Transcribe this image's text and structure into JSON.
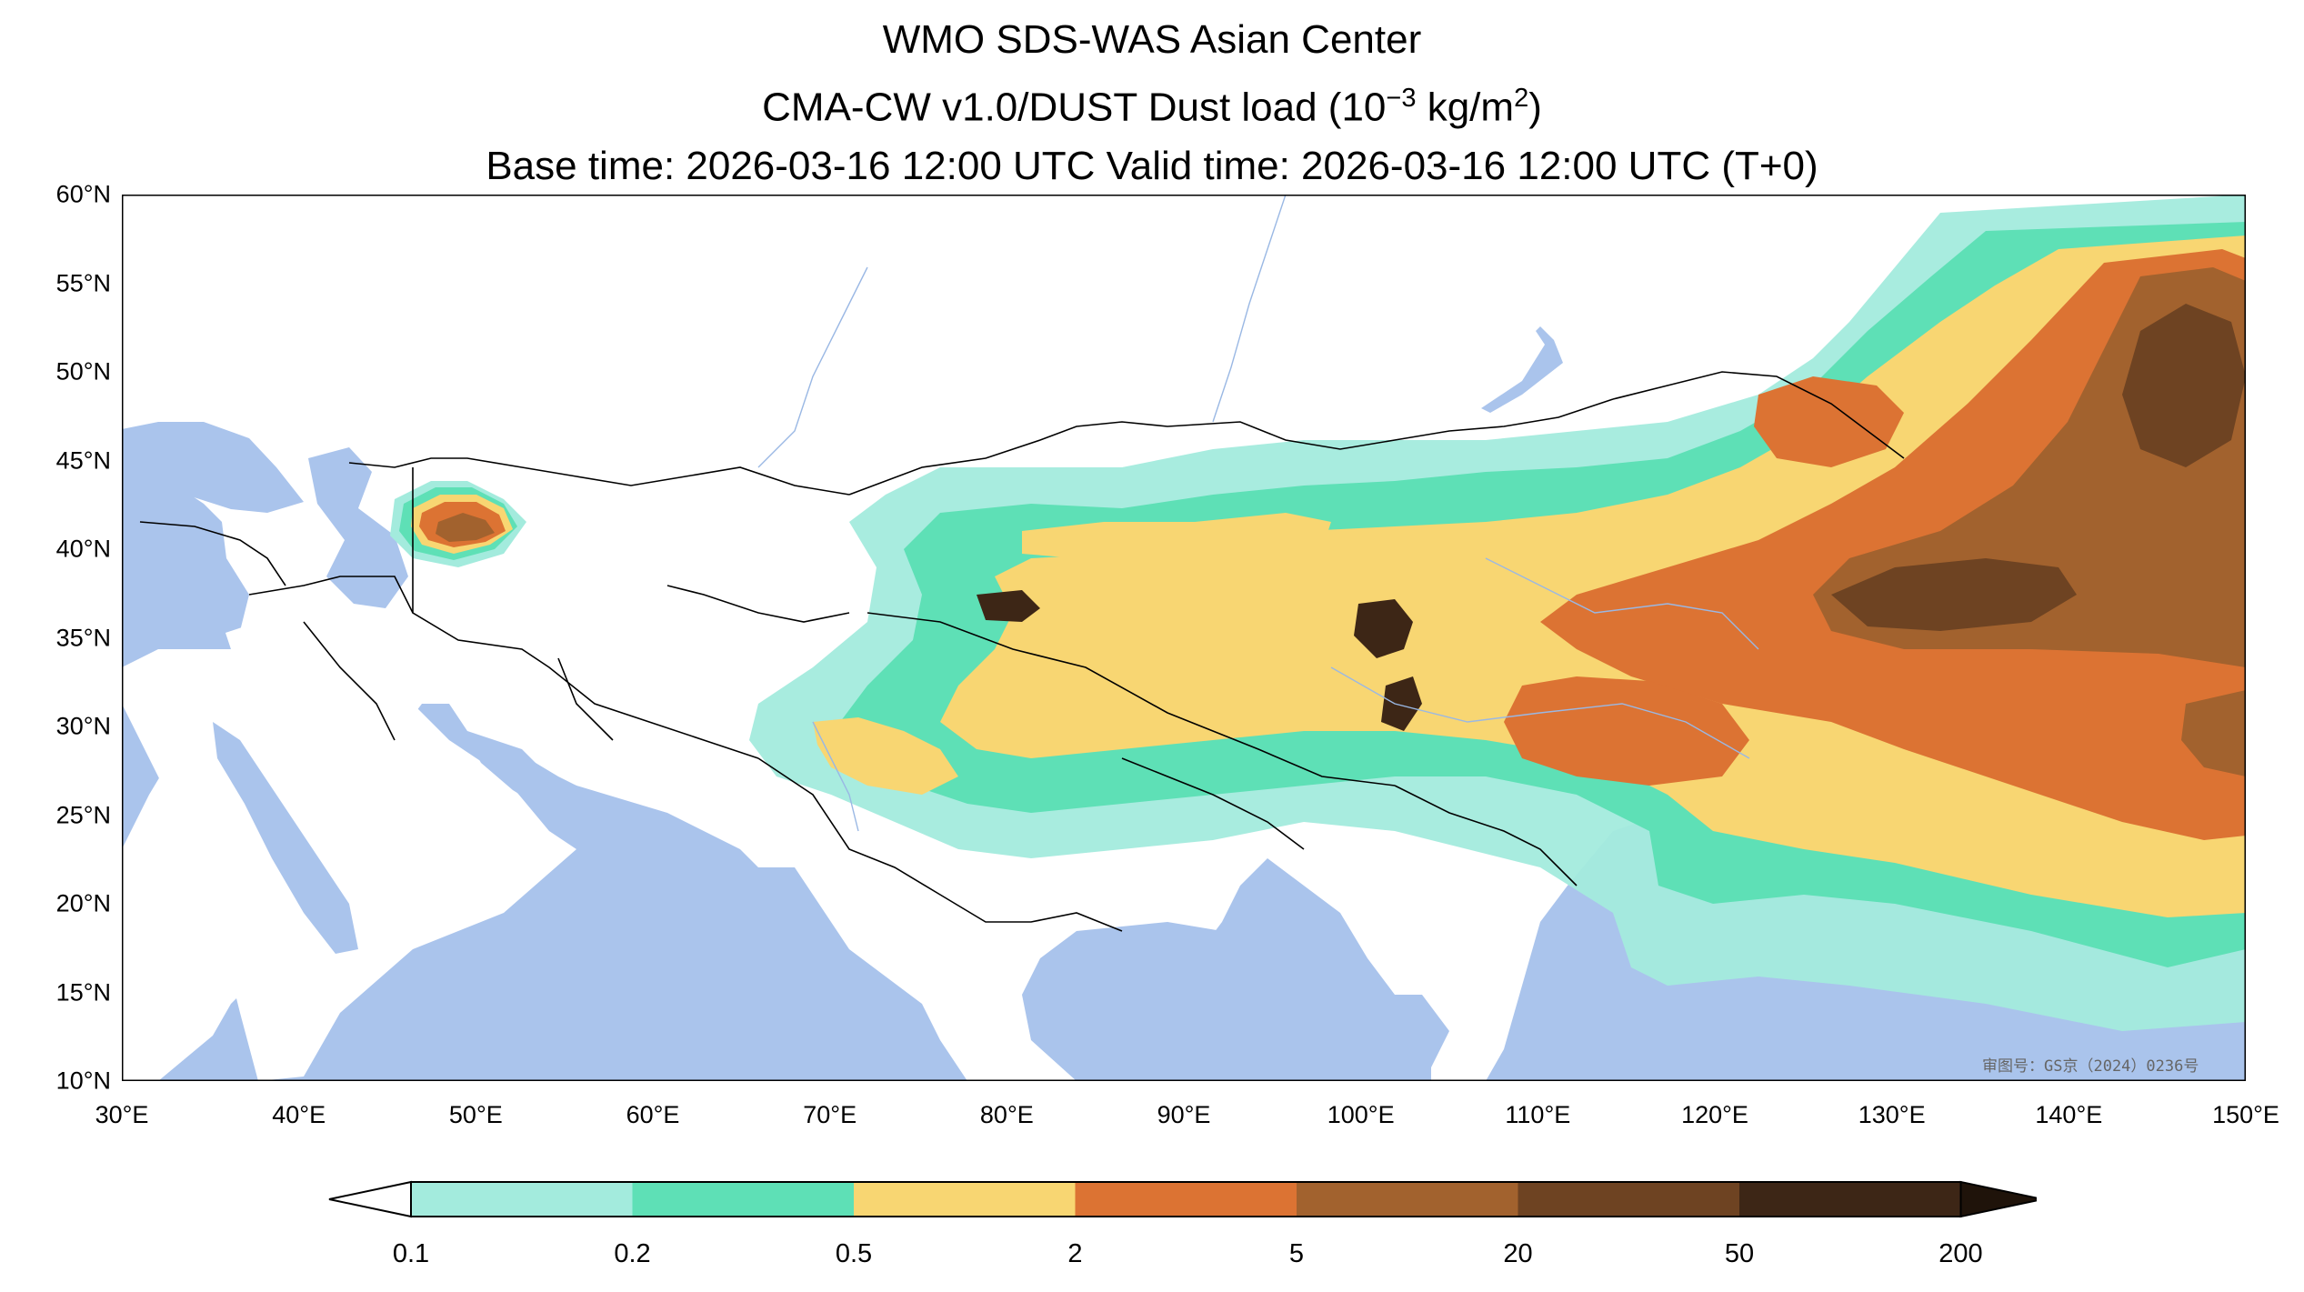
{
  "title": {
    "line1": "WMO SDS-WAS Asian Center",
    "line2_main": "CMA-CW v1.0/DUST Dust load (10",
    "line2_exp": "−3",
    "line2_unit": " kg/m",
    "line2_unit_exp": "2",
    "line2_close": ")",
    "line3": "Base time: 2026-03-16 12:00 UTC Valid time: 2026-03-16 12:00 UTC (T+0)"
  },
  "map": {
    "extent": {
      "lon": [
        30,
        150
      ],
      "lat": [
        10,
        60
      ]
    },
    "ocean_color": "#aac4ec",
    "land_color": "#ffffff",
    "lat_ticks": [
      "60°N",
      "55°N",
      "50°N",
      "45°N",
      "40°N",
      "35°N",
      "30°N",
      "25°N",
      "20°N",
      "15°N",
      "10°N"
    ],
    "lon_ticks": [
      "30°E",
      "40°E",
      "50°E",
      "60°E",
      "70°E",
      "80°E",
      "90°E",
      "100°E",
      "110°E",
      "120°E",
      "130°E",
      "140°E",
      "150°E"
    ],
    "watermark": "审图号：GS京（2024）0236号"
  },
  "colorbar": {
    "levels": [
      "0.1",
      "0.2",
      "0.5",
      "2",
      "5",
      "20",
      "50",
      "200"
    ],
    "colors": [
      "#a3ebdd",
      "#5ee0b6",
      "#f8d672",
      "#dc7333",
      "#a2622e",
      "#6e4322",
      "#3d2616"
    ],
    "extend": "both"
  }
}
